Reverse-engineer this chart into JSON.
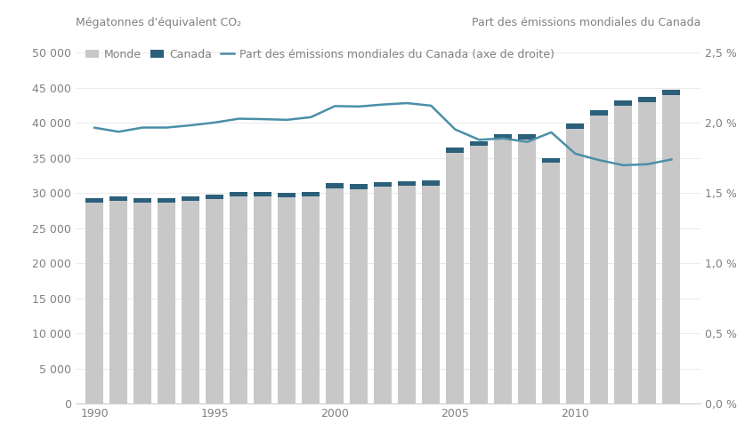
{
  "years": [
    1990,
    1991,
    1992,
    1993,
    1994,
    1995,
    1996,
    1997,
    1998,
    1999,
    2000,
    2001,
    2002,
    2003,
    2004,
    2005,
    2006,
    2007,
    2008,
    2009,
    2010,
    2011,
    2012,
    2013,
    2014
  ],
  "monde": [
    28700,
    28900,
    28700,
    28700,
    28900,
    29200,
    29600,
    29600,
    29400,
    29500,
    30700,
    30600,
    30900,
    31000,
    31100,
    35800,
    36700,
    37700,
    37600,
    34300,
    39200,
    41100,
    42500,
    43000,
    44000
  ],
  "canada": [
    593,
    587,
    591,
    589,
    601,
    614,
    631,
    629,
    626,
    633,
    719,
    680,
    710,
    740,
    741,
    730,
    718,
    747,
    734,
    692,
    699,
    702,
    699,
    726,
    722
  ],
  "part": [
    1.966,
    1.937,
    1.967,
    1.967,
    1.983,
    2.003,
    2.03,
    2.027,
    2.022,
    2.041,
    2.12,
    2.117,
    2.131,
    2.141,
    2.123,
    1.954,
    1.88,
    1.89,
    1.865,
    1.933,
    1.781,
    1.735,
    1.699,
    1.706,
    1.74
  ],
  "bar_color_monde": "#c8c8c8",
  "bar_color_canada": "#2c5f7a",
  "line_color": "#4a8fa8",
  "ylabel_left": "Mégatonnes d'équivalent CO₂",
  "ylabel_right": "Part des émissions mondiales du Canada",
  "legend_monde": "Monde",
  "legend_canada": "Canada",
  "legend_line": "Part des émissions mondiales du Canada (axe de droite)",
  "ylim_left": [
    0,
    50000
  ],
  "ylim_right": [
    0,
    2.5
  ],
  "yticks_left": [
    0,
    5000,
    10000,
    15000,
    20000,
    25000,
    30000,
    35000,
    40000,
    45000,
    50000
  ],
  "yticks_right": [
    0.0,
    0.5,
    1.0,
    1.5,
    2.0,
    2.5
  ],
  "ytick_labels_right": [
    "0,0 %",
    "0,5 %",
    "1,0 %",
    "1,5 %",
    "2,0 %",
    "2,5 %"
  ],
  "ytick_labels_left": [
    "0",
    "5 000",
    "10 000",
    "15 000",
    "20 000",
    "25 000",
    "30 000",
    "35 000",
    "40 000",
    "45 000",
    "50 000"
  ],
  "xticks": [
    1990,
    1995,
    2000,
    2005,
    2010
  ],
  "background_color": "#ffffff",
  "text_color": "#808080",
  "fontsize_labels": 9,
  "fontsize_axis_title": 9
}
